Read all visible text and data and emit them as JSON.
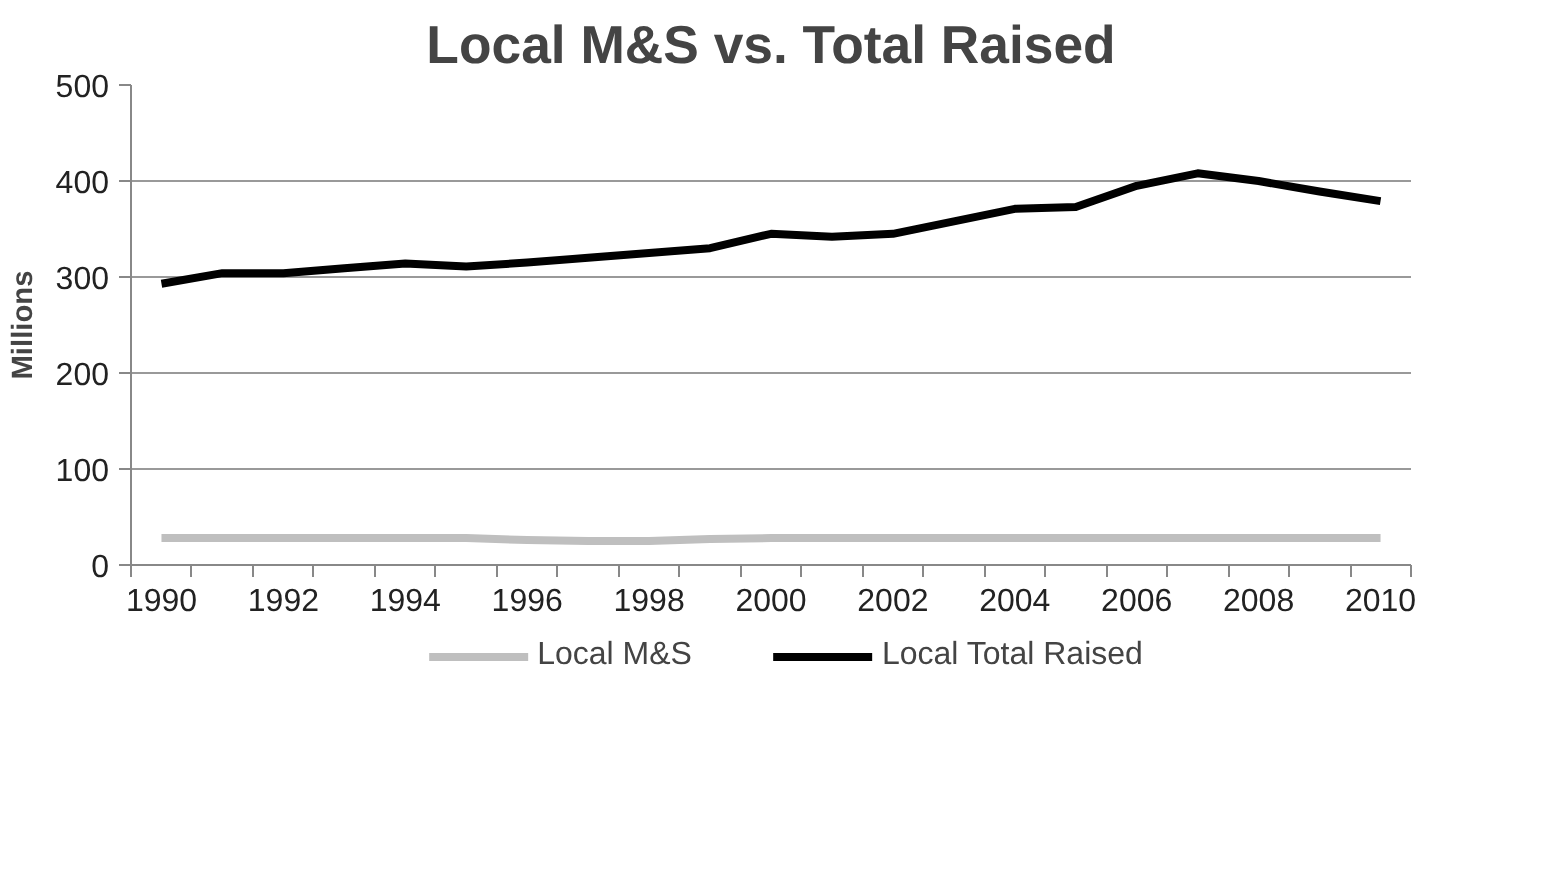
{
  "chart_data": {
    "type": "line",
    "title": "Local M&S vs. Total Raised",
    "ylabel": "Millions",
    "categories": [
      "1990",
      null,
      "1992",
      null,
      "1994",
      null,
      "1996",
      null,
      "1998",
      null,
      "2000",
      null,
      "2002",
      null,
      "2004",
      null,
      "2006",
      null,
      "2008",
      null,
      "2010"
    ],
    "series": [
      {
        "name": "Local M&S",
        "color": "#bfbfbf",
        "values": [
          28,
          28,
          28,
          28,
          28,
          28,
          26,
          25,
          25,
          27,
          28,
          28,
          28,
          28,
          28,
          28,
          28,
          28,
          28,
          28,
          28
        ]
      },
      {
        "name": "Local Total Raised",
        "color": "#000000",
        "values": [
          293,
          304,
          304,
          309,
          314,
          311,
          315,
          320,
          325,
          330,
          345,
          342,
          345,
          358,
          371,
          373,
          395,
          408,
          400,
          389,
          379
        ]
      }
    ],
    "ylim": [
      0,
      500
    ],
    "yticks": [
      0,
      100,
      200,
      300,
      400,
      500
    ],
    "grid": "y",
    "legend": "bottom",
    "marker": "none",
    "line_style": "solid"
  }
}
